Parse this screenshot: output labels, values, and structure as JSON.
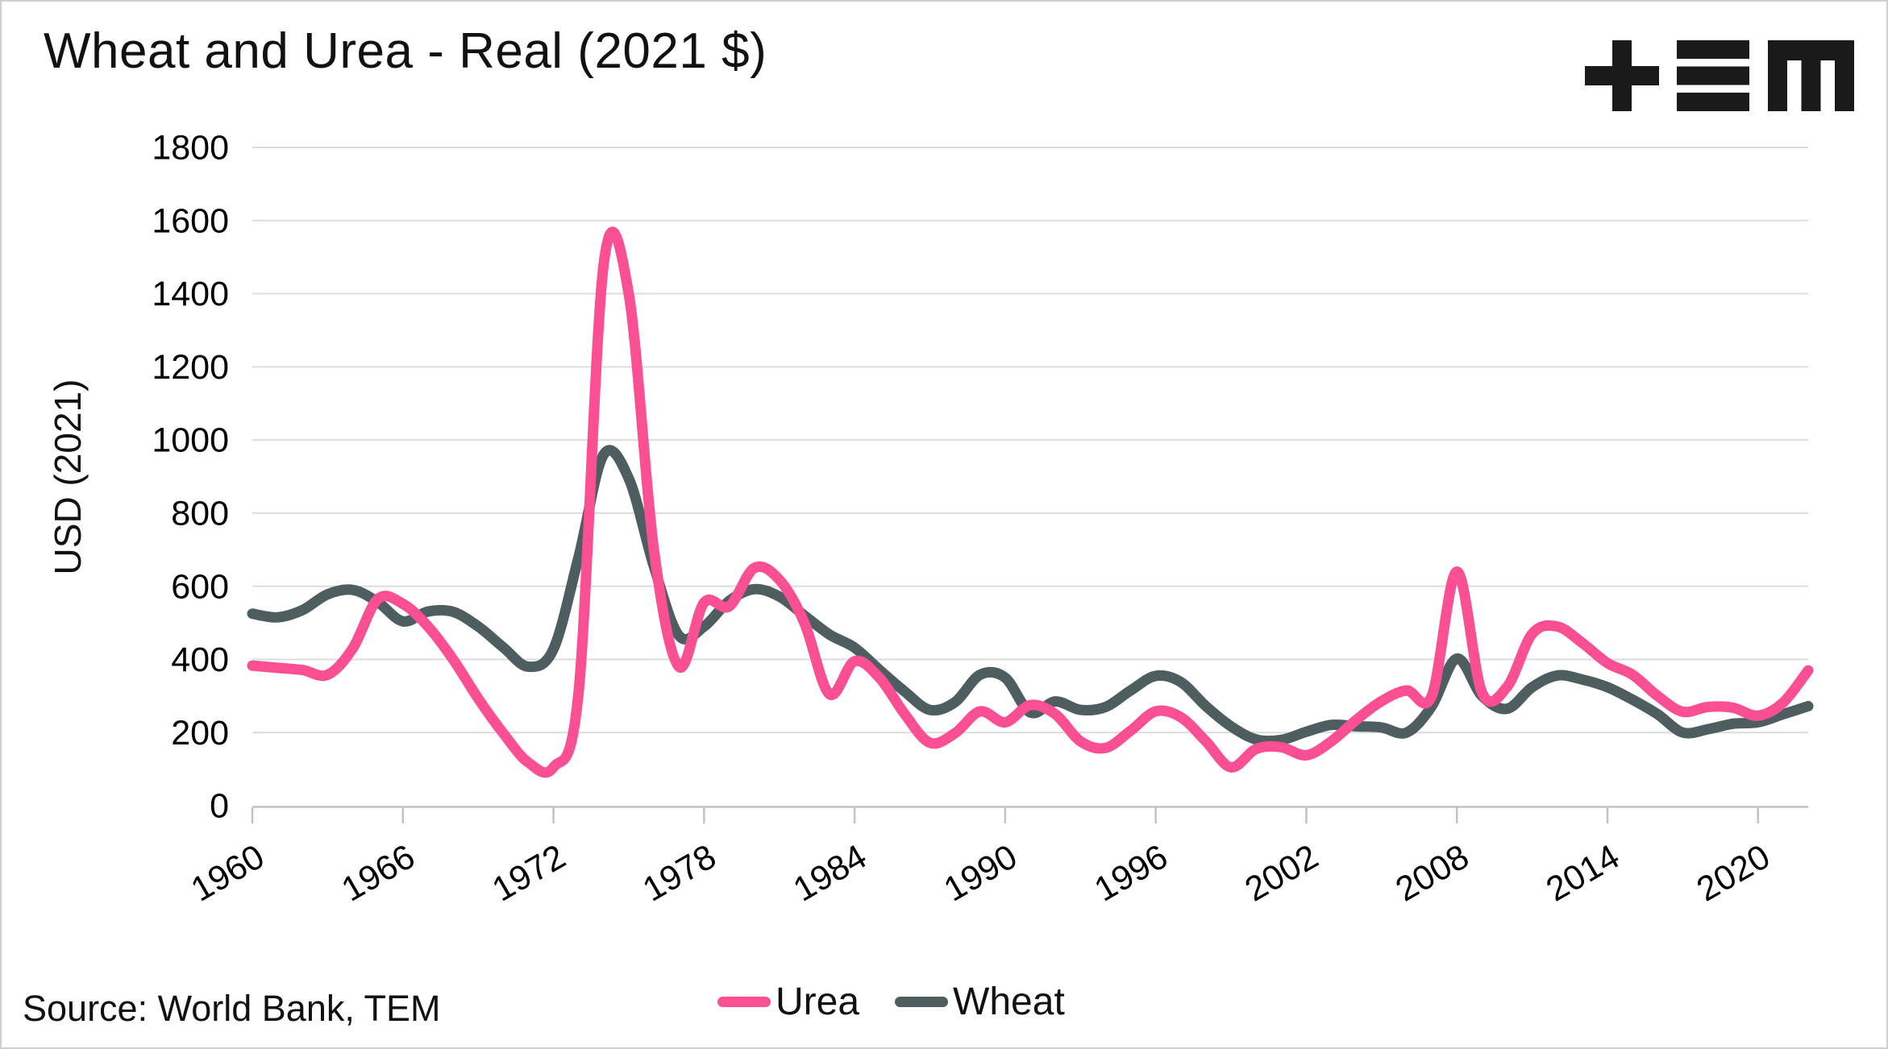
{
  "header": {
    "title": "Wheat and Urea - Real (2021 $)",
    "logo_name": "TEM"
  },
  "y_axis_title": "USD (2021)",
  "source_note": "Source: World Bank, TEM",
  "colors": {
    "urea": "#fb4f93",
    "wheat": "#4e5d5f",
    "gridline": "#dcdcdc",
    "axis": "#c2c2c2",
    "text": "#111111",
    "logo": "#1a1a1a"
  },
  "chart_data": {
    "type": "line",
    "title": "Wheat and Urea - Real (2021 $)",
    "xlabel": "",
    "ylabel": "USD (2021)",
    "ylim": [
      0,
      1800
    ],
    "yticks": [
      0,
      200,
      400,
      600,
      800,
      1000,
      1200,
      1400,
      1600,
      1800
    ],
    "xticks": [
      1960,
      1966,
      1972,
      1978,
      1984,
      1990,
      1996,
      2002,
      2008,
      2014,
      2020
    ],
    "grid": "horizontal",
    "legend_position": "bottom",
    "x": [
      1960,
      1961,
      1962,
      1963,
      1964,
      1965,
      1966,
      1967,
      1968,
      1969,
      1970,
      1971,
      1972,
      1973,
      1974,
      1975,
      1976,
      1977,
      1978,
      1979,
      1980,
      1981,
      1982,
      1983,
      1984,
      1985,
      1986,
      1987,
      1988,
      1989,
      1990,
      1991,
      1992,
      1993,
      1994,
      1995,
      1996,
      1997,
      1998,
      1999,
      2000,
      2001,
      2002,
      2003,
      2004,
      2005,
      2006,
      2007,
      2008,
      2009,
      2010,
      2011,
      2012,
      2013,
      2014,
      2015,
      2016,
      2017,
      2018,
      2019,
      2020,
      2021,
      2022
    ],
    "series": [
      {
        "name": "Urea",
        "color": "#fb4f93",
        "values": [
          383,
          377,
          371,
          358,
          430,
          565,
          552,
          490,
          400,
          293,
          198,
          118,
          105,
          310,
          1480,
          1400,
          700,
          380,
          555,
          545,
          650,
          618,
          500,
          305,
          395,
          349,
          250,
          172,
          198,
          258,
          228,
          275,
          250,
          176,
          158,
          205,
          258,
          242,
          176,
          105,
          155,
          160,
          138,
          176,
          235,
          286,
          315,
          300,
          640,
          310,
          325,
          470,
          490,
          445,
          390,
          358,
          300,
          257,
          270,
          268,
          246,
          282,
          370
        ]
      },
      {
        "name": "Wheat",
        "color": "#4e5d5f",
        "values": [
          525,
          515,
          535,
          578,
          590,
          557,
          504,
          531,
          530,
          490,
          433,
          380,
          428,
          680,
          960,
          895,
          655,
          465,
          490,
          560,
          592,
          572,
          520,
          468,
          432,
          371,
          312,
          262,
          283,
          358,
          350,
          255,
          285,
          262,
          270,
          315,
          355,
          338,
          272,
          217,
          181,
          180,
          202,
          221,
          217,
          214,
          200,
          272,
          402,
          300,
          265,
          324,
          356,
          345,
          324,
          290,
          250,
          200,
          209,
          224,
          228,
          250,
          272
        ]
      }
    ]
  }
}
